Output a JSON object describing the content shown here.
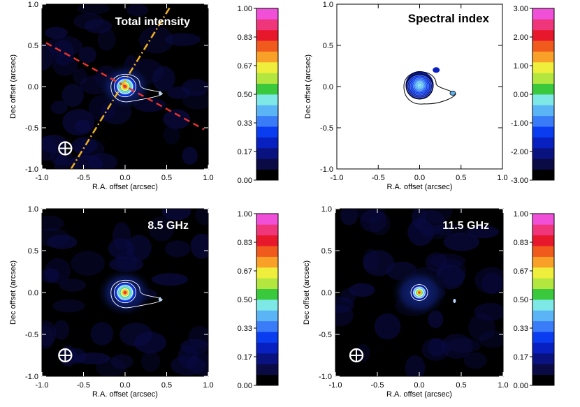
{
  "chart_data": [
    {
      "type": "heatmap",
      "title": "Total intensity",
      "xlabel": "R.A. offset (arcsec)",
      "ylabel": "Dec offset (arcsec)",
      "xlim": [
        -1.0,
        1.0
      ],
      "ylim": [
        -1.0,
        1.0
      ],
      "xticks": [
        "-1.0",
        "-0.5",
        "0.0",
        "0.5",
        "1.0"
      ],
      "yticks": [
        "-1.0",
        "-0.5",
        "0.0",
        "0.5",
        "1.0"
      ],
      "background": "#000000",
      "peak": [
        0.0,
        0.0
      ],
      "secondary_component": [
        0.42,
        -0.08
      ],
      "beam_marker": [
        -0.72,
        -0.75
      ],
      "lines": [
        {
          "style": "dashed",
          "color": "#e8322c",
          "from": [
            -0.95,
            0.53
          ],
          "to": [
            0.95,
            -0.52
          ]
        },
        {
          "style": "dash-dot",
          "color": "#f0b020",
          "from": [
            -0.65,
            -1.0
          ],
          "to": [
            0.55,
            0.98
          ]
        }
      ],
      "colorbar": {
        "labels": [
          "0.00",
          "0.17",
          "0.33",
          "0.50",
          "0.67",
          "0.83",
          "1.00"
        ],
        "range": [
          0.0,
          1.0
        ]
      }
    },
    {
      "type": "heatmap",
      "title": "Spectral index",
      "xlabel": "R.A. offset (arcsec)",
      "ylabel": "Dec offset (arcsec)",
      "xlim": [
        -1.0,
        1.0
      ],
      "ylim": [
        -1.0,
        1.0
      ],
      "xticks": [
        "-1.0",
        "-0.5",
        "0.0",
        "0.5",
        "1.0"
      ],
      "yticks": [
        "-1.0",
        "-0.5",
        "0.0",
        "0.5",
        "1.0"
      ],
      "background": "#ffffff",
      "peak": [
        0.0,
        0.0
      ],
      "secondary_component": [
        0.4,
        -0.08
      ],
      "colorbar": {
        "labels": [
          "-3.00",
          "-2.00",
          "-1.00",
          "0.00",
          "1.00",
          "2.00",
          "3.00"
        ],
        "range": [
          -3.0,
          3.0
        ]
      }
    },
    {
      "type": "heatmap",
      "title": "8.5 GHz",
      "xlabel": "R.A. offset (arcsec)",
      "ylabel": "Dec offset (arcsec)",
      "xlim": [
        -1.0,
        1.0
      ],
      "ylim": [
        -1.0,
        1.0
      ],
      "xticks": [
        "-1.0",
        "-0.5",
        "0.0",
        "0.5",
        "1.0"
      ],
      "yticks": [
        "-1.0",
        "-0.5",
        "0.0",
        "0.5",
        "1.0"
      ],
      "background": "#000000",
      "peak": [
        0.0,
        0.0
      ],
      "secondary_component": [
        0.42,
        -0.08
      ],
      "beam_marker": [
        -0.72,
        -0.75
      ],
      "colorbar": {
        "labels": [
          "0.00",
          "0.17",
          "0.33",
          "0.50",
          "0.67",
          "0.83",
          "1.00"
        ],
        "range": [
          0.0,
          1.0
        ]
      }
    },
    {
      "type": "heatmap",
      "title": "11.5 GHz",
      "xlabel": "R.A. offset (arcsec)",
      "ylabel": "Dec offset (arcsec)",
      "xlim": [
        -1.0,
        1.0
      ],
      "ylim": [
        -1.0,
        1.0
      ],
      "xticks": [
        "-1.0",
        "-0.5",
        "0.0",
        "0.5",
        "1.0"
      ],
      "yticks": [
        "-1.0",
        "-0.5",
        "0.0",
        "0.5",
        "1.0"
      ],
      "background": "#000000",
      "peak": [
        0.0,
        0.0
      ],
      "secondary_component": [
        0.42,
        -0.1
      ],
      "beam_marker": [
        -0.75,
        -0.75
      ],
      "colorbar": {
        "labels": [
          "0.00",
          "0.17",
          "0.33",
          "0.50",
          "0.67",
          "0.83",
          "1.00"
        ],
        "range": [
          0.0,
          1.0
        ]
      }
    }
  ],
  "colormap": [
    "#000000",
    "#0a0a45",
    "#0a1280",
    "#0820c0",
    "#0a3cf0",
    "#3a7cf8",
    "#5ab4f5",
    "#7ee8e6",
    "#3ac83c",
    "#b4e640",
    "#f0ee3c",
    "#f8a028",
    "#f05a1c",
    "#e8182c",
    "#f0367a",
    "#f050d8"
  ]
}
